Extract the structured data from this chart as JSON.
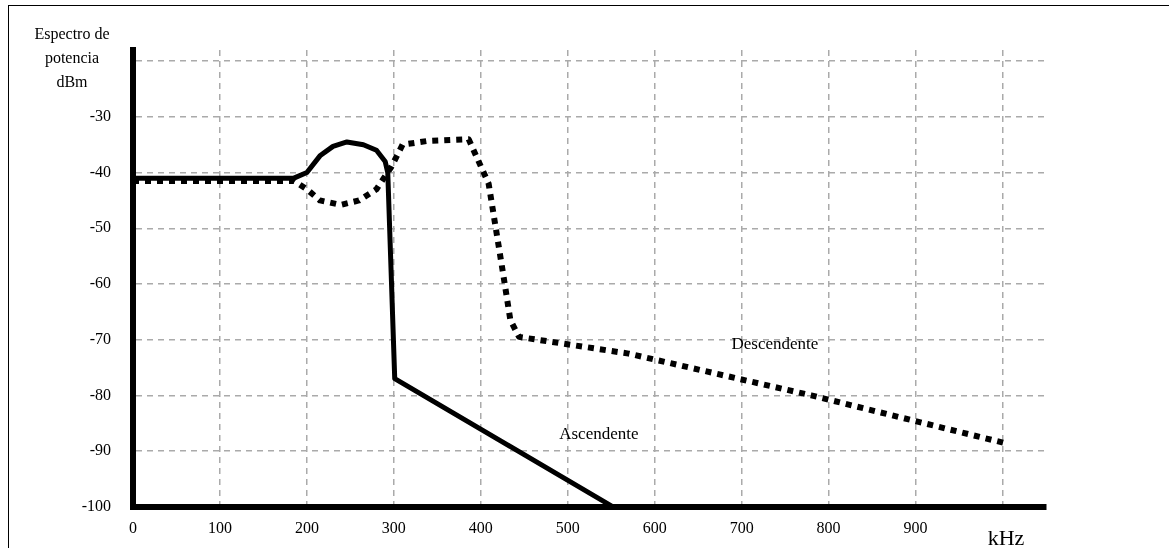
{
  "chart_data": {
    "type": "line",
    "ylabel": "Espectro de potencia dBm",
    "xlabel": "kHz",
    "xlim": [
      0,
      1050
    ],
    "ylim": [
      -100,
      -18
    ],
    "xticks": [
      0,
      100,
      200,
      300,
      400,
      500,
      600,
      700,
      800,
      900,
      {
        "value": 1000,
        "label": null
      }
    ],
    "yticks": [
      -100,
      -90,
      -80,
      -70,
      -60,
      -50,
      -40,
      -30,
      {
        "value": -20,
        "label": null
      }
    ],
    "grid": true,
    "legend": false,
    "marker": "none",
    "series": [
      {
        "name": "Ascendente",
        "color": "#000000",
        "line_style": "solid",
        "x": [
          0,
          185,
          200,
          215,
          230,
          246,
          265,
          280,
          290,
          293,
          301,
          552
        ],
        "values": [
          -41,
          -41,
          -40,
          -37,
          -35.3,
          -34.5,
          -35,
          -36,
          -38,
          -40,
          -77,
          -100
        ]
      },
      {
        "name": "Descendente",
        "color": "#000000",
        "line_style": "dotted",
        "x": [
          0,
          185,
          200,
          215,
          239,
          260,
          280,
          297,
          310,
          340,
          386,
          409,
          426,
          434,
          444,
          570,
          780,
          1001
        ],
        "values": [
          -41.5,
          -41.5,
          -43,
          -45,
          -45.8,
          -45,
          -43,
          -39,
          -35,
          -34.3,
          -34,
          -42,
          -58.5,
          -66.5,
          -69.5,
          -72.5,
          -80,
          -88.5
        ]
      }
    ]
  }
}
